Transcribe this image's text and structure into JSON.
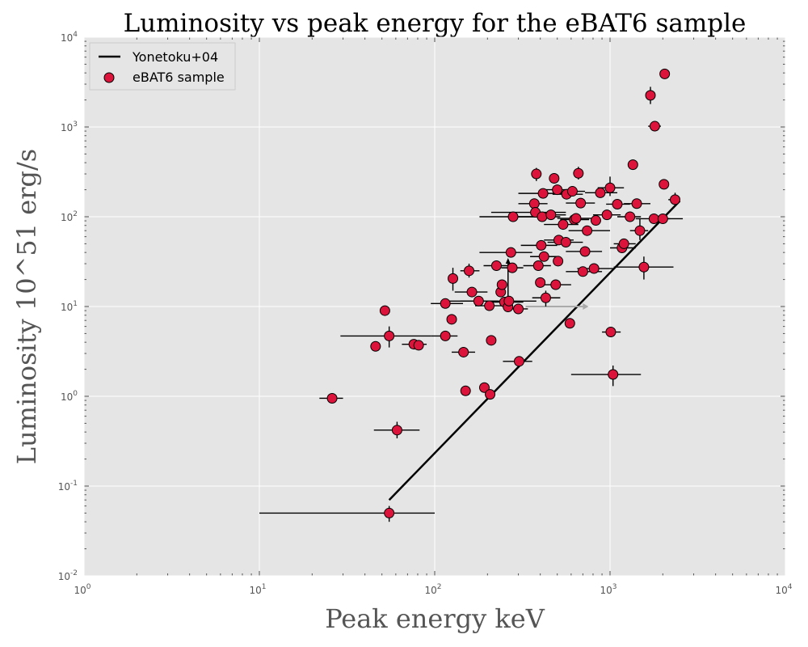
{
  "chart_data": {
    "type": "scatter",
    "title": "Luminosity vs peak energy for the eBAT6 sample",
    "xlabel": "Peak energy keV",
    "ylabel": "Luminosity 10^51 erg/s",
    "x_scale": "log",
    "y_scale": "log",
    "xlim": [
      1,
      10000
    ],
    "ylim": [
      0.01,
      10000
    ],
    "x_ticks": [
      {
        "value": 1,
        "base": "10",
        "exp": "0"
      },
      {
        "value": 10,
        "base": "10",
        "exp": "1"
      },
      {
        "value": 100,
        "base": "10",
        "exp": "2"
      },
      {
        "value": 1000,
        "base": "10",
        "exp": "3"
      },
      {
        "value": 10000,
        "base": "10",
        "exp": "4"
      }
    ],
    "y_ticks": [
      {
        "value": 0.01,
        "base": "10",
        "exp": "-2"
      },
      {
        "value": 0.1,
        "base": "10",
        "exp": "-1"
      },
      {
        "value": 1,
        "base": "10",
        "exp": "0"
      },
      {
        "value": 10,
        "base": "10",
        "exp": "1"
      },
      {
        "value": 100,
        "base": "10",
        "exp": "2"
      },
      {
        "value": 1000,
        "base": "10",
        "exp": "3"
      },
      {
        "value": 10000,
        "base": "10",
        "exp": "4"
      }
    ],
    "grid": true,
    "background_color": "#e5e5e5",
    "legend_position": "top-left",
    "series": [
      {
        "name": "Yonetoku+04",
        "kind": "line",
        "color": "#000000",
        "x": [
          55,
          2500
        ],
        "y": [
          0.07,
          150
        ]
      },
      {
        "name": "eBAT6 sample",
        "kind": "scatter",
        "color": "#dc143c",
        "points": [
          {
            "x": 26,
            "y": 0.95,
            "xerr": [
              22,
              30
            ]
          },
          {
            "x": 46,
            "y": 3.6
          },
          {
            "x": 52,
            "y": 9
          },
          {
            "x": 55,
            "y": 4.7,
            "xerr": [
              29,
              95
            ],
            "yerr": [
              3.5,
              6
            ]
          },
          {
            "x": 55,
            "y": 0.05,
            "xerr": [
              10,
              100
            ],
            "yerr": [
              0.04,
              0.06
            ]
          },
          {
            "x": 61,
            "y": 0.42,
            "xerr": [
              45,
              82
            ],
            "yerr": [
              0.34,
              0.52
            ]
          },
          {
            "x": 76,
            "y": 3.8,
            "xerr": [
              65,
              90
            ]
          },
          {
            "x": 81,
            "y": 3.7
          },
          {
            "x": 115,
            "y": 4.7,
            "xerr": [
              95,
              135
            ]
          },
          {
            "x": 115,
            "y": 10.8,
            "xerr": [
              95,
              145
            ]
          },
          {
            "x": 125,
            "y": 7.2
          },
          {
            "x": 127,
            "y": 20.5,
            "yerr": [
              15,
              27
            ]
          },
          {
            "x": 146,
            "y": 3.1,
            "xerr": [
              125,
              170
            ]
          },
          {
            "x": 150,
            "y": 1.15
          },
          {
            "x": 157,
            "y": 25,
            "xerr": [
              140,
              180
            ],
            "yerr": [
              21,
              30
            ]
          },
          {
            "x": 163,
            "y": 14.5,
            "xerr": [
              130,
              200
            ]
          },
          {
            "x": 178,
            "y": 11.5,
            "xerr": [
              140,
              230
            ]
          },
          {
            "x": 192,
            "y": 1.25
          },
          {
            "x": 205,
            "y": 10.2,
            "xerr": [
              170,
              240
            ]
          },
          {
            "x": 207,
            "y": 1.05
          },
          {
            "x": 210,
            "y": 4.2
          },
          {
            "x": 225,
            "y": 28.5,
            "xerr": [
              190,
              260
            ]
          },
          {
            "x": 238,
            "y": 14.5
          },
          {
            "x": 242,
            "y": 17.5
          },
          {
            "x": 250,
            "y": 11.2,
            "xerr": [
              200,
              320
            ]
          },
          {
            "x": 262,
            "y": 9.9
          },
          {
            "x": 265,
            "y": 11.5,
            "xerr": [
              120,
              380
            ]
          },
          {
            "x": 272,
            "y": 40,
            "xerr": [
              180,
              360
            ]
          },
          {
            "x": 277,
            "y": 27,
            "xerr": [
              240,
              320
            ]
          },
          {
            "x": 280,
            "y": 100,
            "xerr": [
              180,
              450
            ]
          },
          {
            "x": 300,
            "y": 9.4,
            "xerr": [
              260,
              340
            ]
          },
          {
            "x": 303,
            "y": 2.45,
            "xerr": [
              245,
              360
            ]
          },
          {
            "x": 370,
            "y": 140,
            "xerr": [
              300,
              440
            ]
          },
          {
            "x": 375,
            "y": 112,
            "xerr": [
              210,
              560
            ]
          },
          {
            "x": 380,
            "y": 300,
            "yerr": [
              250,
              350
            ]
          },
          {
            "x": 390,
            "y": 28.5,
            "xerr": [
              320,
              460
            ]
          },
          {
            "x": 400,
            "y": 18.5
          },
          {
            "x": 405,
            "y": 48,
            "xerr": [
              310,
              500
            ]
          },
          {
            "x": 410,
            "y": 100,
            "xerr": [
              300,
              520
            ]
          },
          {
            "x": 415,
            "y": 182,
            "xerr": [
              300,
              530
            ]
          },
          {
            "x": 420,
            "y": 36,
            "xerr": [
              350,
              500
            ]
          },
          {
            "x": 430,
            "y": 12.5,
            "xerr": [
              360,
              520
            ],
            "yerr": [
              10,
              15
            ]
          },
          {
            "x": 460,
            "y": 105,
            "xerr": [
              380,
              560
            ]
          },
          {
            "x": 480,
            "y": 268,
            "yerr": [
              240,
              300
            ]
          },
          {
            "x": 490,
            "y": 17.5,
            "xerr": [
              400,
              600
            ]
          },
          {
            "x": 500,
            "y": 200,
            "xerr": [
              400,
              640
            ]
          },
          {
            "x": 505,
            "y": 32
          },
          {
            "x": 510,
            "y": 55,
            "xerr": [
              420,
              620
            ]
          },
          {
            "x": 540,
            "y": 82,
            "xerr": [
              420,
              660
            ]
          },
          {
            "x": 560,
            "y": 52,
            "xerr": [
              440,
              700
            ]
          },
          {
            "x": 565,
            "y": 178,
            "xerr": [
              470,
              700
            ]
          },
          {
            "x": 590,
            "y": 6.5
          },
          {
            "x": 610,
            "y": 192,
            "xerr": [
              520,
              720
            ]
          },
          {
            "x": 625,
            "y": 93,
            "xerr": [
              520,
              760
            ]
          },
          {
            "x": 640,
            "y": 96,
            "xerr": [
              500,
              820
            ]
          },
          {
            "x": 660,
            "y": 305,
            "yerr": [
              260,
              360
            ]
          },
          {
            "x": 680,
            "y": 142,
            "xerr": [
              560,
              820
            ]
          },
          {
            "x": 700,
            "y": 24.5,
            "xerr": [
              560,
              900
            ]
          },
          {
            "x": 720,
            "y": 41,
            "xerr": [
              560,
              900
            ]
          },
          {
            "x": 740,
            "y": 70,
            "xerr": [
              580,
              1000
            ]
          },
          {
            "x": 810,
            "y": 26.5,
            "xerr": [
              650,
              1050
            ]
          },
          {
            "x": 830,
            "y": 91
          },
          {
            "x": 880,
            "y": 185,
            "xerr": [
              720,
              1100
            ]
          },
          {
            "x": 960,
            "y": 105,
            "xerr": [
              800,
              1150
            ]
          },
          {
            "x": 1000,
            "y": 210,
            "xerr": [
              850,
              1200
            ],
            "yerr": [
              170,
              280
            ]
          },
          {
            "x": 1010,
            "y": 5.2,
            "xerr": [
              900,
              1150
            ]
          },
          {
            "x": 1040,
            "y": 1.75,
            "xerr": [
              600,
              1500
            ],
            "yerr": [
              1.3,
              2.2
            ]
          },
          {
            "x": 1100,
            "y": 138,
            "xerr": [
              950,
              1300
            ]
          },
          {
            "x": 1170,
            "y": 45,
            "xerr": [
              1000,
              1400
            ]
          },
          {
            "x": 1200,
            "y": 50,
            "xerr": [
              1050,
              1400
            ]
          },
          {
            "x": 1300,
            "y": 100,
            "xerr": [
              1100,
              1500
            ]
          },
          {
            "x": 1350,
            "y": 380
          },
          {
            "x": 1420,
            "y": 140,
            "xerr": [
              1200,
              1700
            ]
          },
          {
            "x": 1480,
            "y": 70,
            "xerr": [
              1300,
              1650
            ],
            "yerr": [
              55,
              95
            ]
          },
          {
            "x": 1560,
            "y": 27.5,
            "xerr": [
              1050,
              2300
            ],
            "yerr": [
              20,
              36
            ]
          },
          {
            "x": 1700,
            "y": 2250,
            "xerr": [
              1600,
              1800
            ],
            "yerr": [
              1800,
              2800
            ]
          },
          {
            "x": 1780,
            "y": 95,
            "xerr": [
              1400,
              2200
            ]
          },
          {
            "x": 1800,
            "y": 1020,
            "xerr": [
              1650,
              1950
            ]
          },
          {
            "x": 2000,
            "y": 95,
            "xerr": [
              1700,
              2600
            ]
          },
          {
            "x": 2030,
            "y": 230
          },
          {
            "x": 2050,
            "y": 3900
          },
          {
            "x": 2350,
            "y": 155,
            "xerr": [
              2150,
              2500
            ],
            "yerr": [
              130,
              185
            ]
          }
        ]
      }
    ],
    "annotations": [
      {
        "kind": "limit_arrow",
        "direction": "right",
        "x": 330,
        "y": 10,
        "to_x": 700,
        "color": "#aaaaaa"
      },
      {
        "kind": "limit_arrow",
        "direction": "up",
        "x": 262,
        "y": 12,
        "to_y": 30,
        "color": "#000000"
      }
    ]
  }
}
